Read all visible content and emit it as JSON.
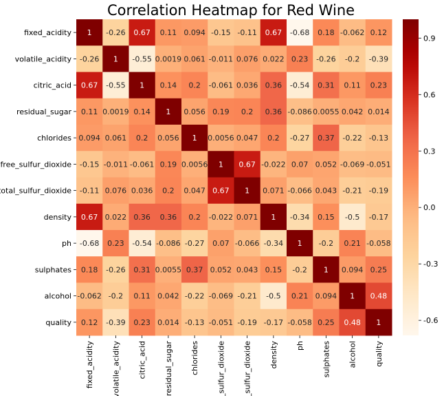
{
  "chart_data": {
    "type": "heatmap",
    "title": "Correlation Heatmap for Red Wine",
    "variables": [
      "fixed_acidity",
      "volatile_acidity",
      "citric_acid",
      "residual_sugar",
      "chlorides",
      "free_sulfur_dioxide",
      "total_sulfur_dioxide",
      "density",
      "ph",
      "sulphates",
      "alcohol",
      "quality"
    ],
    "values": [
      [
        "1",
        "-0.26",
        "0.67",
        "0.11",
        "0.094",
        "-0.15",
        "-0.11",
        "0.67",
        "-0.68",
        "0.18",
        "-0.062",
        "0.12"
      ],
      [
        "-0.26",
        "1",
        "-0.55",
        "0.0019",
        "0.061",
        "-0.011",
        "0.076",
        "0.022",
        "0.23",
        "-0.26",
        "-0.2",
        "-0.39"
      ],
      [
        "0.67",
        "-0.55",
        "1",
        "0.14",
        "0.2",
        "-0.061",
        "0.036",
        "0.36",
        "-0.54",
        "0.31",
        "0.11",
        "0.23"
      ],
      [
        "0.11",
        "0.0019",
        "0.14",
        "1",
        "0.056",
        "0.19",
        "0.2",
        "0.36",
        "-0.086",
        "0.0055",
        "0.042",
        "0.014"
      ],
      [
        "0.094",
        "0.061",
        "0.2",
        "0.056",
        "1",
        "0.0056",
        "0.047",
        "0.2",
        "-0.27",
        "0.37",
        "-0.22",
        "-0.13"
      ],
      [
        "-0.15",
        "-0.011",
        "-0.061",
        "0.19",
        "0.0056",
        "1",
        "0.67",
        "-0.022",
        "0.07",
        "0.052",
        "-0.069",
        "-0.051"
      ],
      [
        "-0.11",
        "0.076",
        "0.036",
        "0.2",
        "0.047",
        "0.67",
        "1",
        "0.071",
        "-0.066",
        "0.043",
        "-0.21",
        "-0.19"
      ],
      [
        "0.67",
        "0.022",
        "0.36",
        "0.36",
        "0.2",
        "-0.022",
        "0.071",
        "1",
        "-0.34",
        "0.15",
        "-0.5",
        "-0.17"
      ],
      [
        "-0.68",
        "0.23",
        "-0.54",
        "-0.086",
        "-0.27",
        "0.07",
        "-0.066",
        "-0.34",
        "1",
        "-0.2",
        "0.21",
        "-0.058"
      ],
      [
        "0.18",
        "-0.26",
        "0.31",
        "0.0055",
        "0.37",
        "0.052",
        "0.043",
        "0.15",
        "-0.2",
        "1",
        "0.094",
        "0.25"
      ],
      [
        "-0.062",
        "-0.2",
        "0.11",
        "0.042",
        "-0.22",
        "-0.069",
        "-0.21",
        "-0.5",
        "0.21",
        "0.094",
        "1",
        "0.48"
      ],
      [
        "0.12",
        "-0.39",
        "0.23",
        "0.014",
        "-0.13",
        "-0.051",
        "-0.19",
        "-0.17",
        "-0.058",
        "0.25",
        "0.48",
        "1"
      ]
    ],
    "colorbar": {
      "colormap": "OrRd",
      "vmin": -0.68,
      "vmax": 1,
      "ticks": [
        "-0.6",
        "-0.3",
        "0.0",
        "0.3",
        "0.6",
        "0.9"
      ]
    },
    "annotations": true,
    "grid": false
  }
}
